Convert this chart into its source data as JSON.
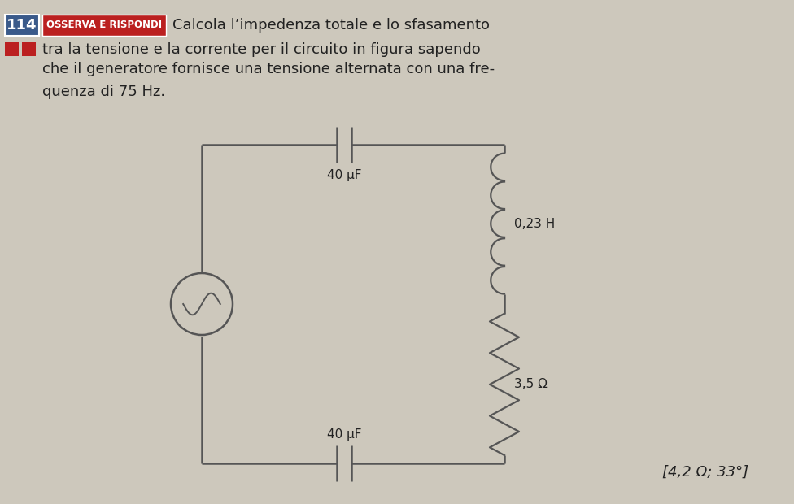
{
  "bg_color": "#cdc8bc",
  "title_number": "114",
  "title_number_bg": "#3a5a8a",
  "title_number_fg": "#ffffff",
  "badge_text": "OSSERVA E RISPONDI",
  "badge_bg": "#bb2020",
  "badge_fg": "#ffffff",
  "main_text_line1": "Calcola l’impedenza totale e lo sfasamento",
  "main_text_line2": "tra la tensione e la corrente per il circuito in figura sapendo",
  "main_text_line3": "che il generatore fornisce una tensione alternata con una fre-",
  "main_text_line4": "quenza di 75 Hz.",
  "answer": "[4,2 Ω; 33°]",
  "cap_top_label": "40 μF",
  "cap_bot_label": "40 μF",
  "inductor_label": "0,23 H",
  "resistor_label": "3,5 Ω",
  "wire_color": "#555555",
  "text_color": "#222222"
}
